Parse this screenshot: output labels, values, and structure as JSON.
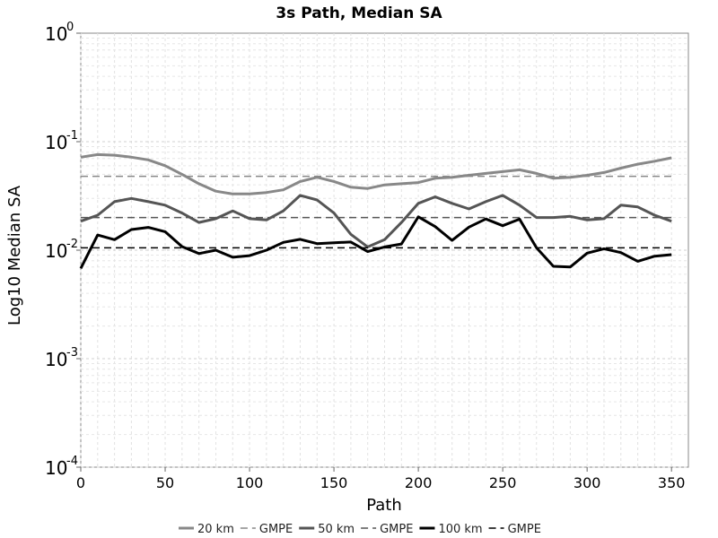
{
  "chart_data": {
    "type": "line",
    "title": "3s Path, Median SA",
    "xlabel": "Path",
    "ylabel": "Log10 Median SA",
    "xlim": [
      0,
      360
    ],
    "ylim": [
      0.0001,
      1
    ],
    "yscale": "log",
    "grid": true,
    "legend_position": "bottom",
    "x_ticks": [
      "0",
      "50",
      "100",
      "150",
      "200",
      "250",
      "300",
      "350"
    ],
    "x_tick_values": [
      0,
      50,
      100,
      150,
      200,
      250,
      300,
      350
    ],
    "y_ticks": [
      {
        "base": "10",
        "exp": "-4",
        "value": 0.0001
      },
      {
        "base": "10",
        "exp": "-3",
        "value": 0.001
      },
      {
        "base": "10",
        "exp": "-2",
        "value": 0.01
      },
      {
        "base": "10",
        "exp": "-1",
        "value": 0.1
      },
      {
        "base": "10",
        "exp": "0",
        "value": 1
      }
    ],
    "x": [
      0,
      10,
      20,
      30,
      40,
      50,
      60,
      70,
      80,
      90,
      100,
      110,
      120,
      130,
      140,
      150,
      160,
      170,
      180,
      190,
      200,
      210,
      220,
      230,
      240,
      250,
      260,
      270,
      280,
      290,
      300,
      310,
      320,
      330,
      340,
      350
    ],
    "series": [
      {
        "name": "20 km",
        "color": "#888888",
        "style": "solid",
        "values": [
          0.072,
          0.076,
          0.075,
          0.072,
          0.068,
          0.06,
          0.05,
          0.041,
          0.035,
          0.033,
          0.033,
          0.034,
          0.036,
          0.043,
          0.047,
          0.043,
          0.038,
          0.037,
          0.04,
          0.041,
          0.042,
          0.046,
          0.047,
          0.049,
          0.051,
          0.053,
          0.055,
          0.051,
          0.046,
          0.047,
          0.049,
          0.052,
          0.057,
          0.062,
          0.066,
          0.071
        ]
      },
      {
        "name": "GMPE",
        "color": "#888888",
        "style": "dashed",
        "values": [
          0.048,
          0.048,
          0.048,
          0.048,
          0.048,
          0.048,
          0.048,
          0.048,
          0.048,
          0.048,
          0.048,
          0.048,
          0.048,
          0.048,
          0.048,
          0.048,
          0.048,
          0.048,
          0.048,
          0.048,
          0.048,
          0.048,
          0.048,
          0.048,
          0.048,
          0.048,
          0.048,
          0.048,
          0.048,
          0.048,
          0.048,
          0.048,
          0.048,
          0.048,
          0.048,
          0.048
        ]
      },
      {
        "name": "50 km",
        "color": "#555555",
        "style": "solid",
        "values": [
          0.0185,
          0.021,
          0.028,
          0.03,
          0.028,
          0.026,
          0.022,
          0.018,
          0.0195,
          0.023,
          0.0195,
          0.019,
          0.023,
          0.032,
          0.029,
          0.022,
          0.014,
          0.0107,
          0.0125,
          0.018,
          0.027,
          0.031,
          0.027,
          0.024,
          0.028,
          0.032,
          0.026,
          0.02,
          0.02,
          0.0205,
          0.019,
          0.0195,
          0.026,
          0.025,
          0.021,
          0.0185
        ]
      },
      {
        "name": "GMPE",
        "color": "#555555",
        "style": "dashed",
        "values": [
          0.02,
          0.02,
          0.02,
          0.02,
          0.02,
          0.02,
          0.02,
          0.02,
          0.02,
          0.02,
          0.02,
          0.02,
          0.02,
          0.02,
          0.02,
          0.02,
          0.02,
          0.02,
          0.02,
          0.02,
          0.02,
          0.02,
          0.02,
          0.02,
          0.02,
          0.02,
          0.02,
          0.02,
          0.02,
          0.02,
          0.02,
          0.02,
          0.02,
          0.02,
          0.02,
          0.02
        ]
      },
      {
        "name": "100 km",
        "color": "#000000",
        "style": "solid",
        "values": [
          0.0068,
          0.0138,
          0.0125,
          0.0155,
          0.0162,
          0.0148,
          0.0108,
          0.0093,
          0.01,
          0.0086,
          0.0089,
          0.01,
          0.0118,
          0.0126,
          0.0115,
          0.0117,
          0.0119,
          0.0097,
          0.0107,
          0.0114,
          0.0203,
          0.0165,
          0.0123,
          0.0163,
          0.0194,
          0.0168,
          0.0193,
          0.0105,
          0.0071,
          0.007,
          0.0094,
          0.0103,
          0.0095,
          0.0079,
          0.0088,
          0.0091
        ]
      },
      {
        "name": "GMPE",
        "color": "#000000",
        "style": "dashed",
        "values": [
          0.0105,
          0.0105,
          0.0105,
          0.0105,
          0.0105,
          0.0105,
          0.0105,
          0.0105,
          0.0105,
          0.0105,
          0.0105,
          0.0105,
          0.0105,
          0.0105,
          0.0105,
          0.0105,
          0.0105,
          0.0105,
          0.0105,
          0.0105,
          0.0105,
          0.0105,
          0.0105,
          0.0105,
          0.0105,
          0.0105,
          0.0105,
          0.0105,
          0.0105,
          0.0105,
          0.0105,
          0.0105,
          0.0105,
          0.0105,
          0.0105,
          0.0105
        ]
      }
    ]
  }
}
